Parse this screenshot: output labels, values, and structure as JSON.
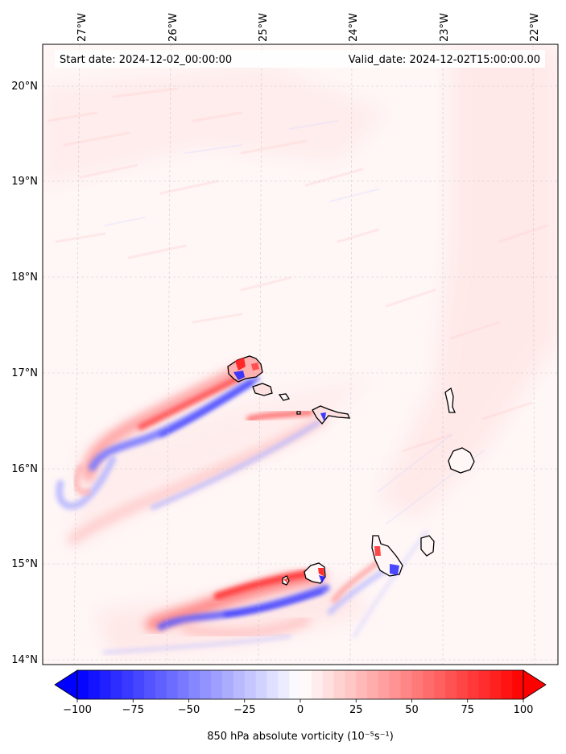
{
  "header": {
    "start_date": "Start date: 2024-12-02_00:00:00",
    "valid_date": "Valid_date: 2024-12-02T15:00:00.00"
  },
  "axes": {
    "lon_labels": [
      "27°W",
      "26°W",
      "25°W",
      "24°W",
      "23°W",
      "22°W"
    ],
    "lat_labels": [
      "20°N",
      "19°N",
      "18°N",
      "17°N",
      "16°N",
      "15°N",
      "14°N"
    ]
  },
  "colorbar": {
    "ticks": [
      "−100",
      "−75",
      "−50",
      "−25",
      "0",
      "25",
      "50",
      "75",
      "100"
    ],
    "label": "850 hPa absolute vorticity (10⁻⁵s⁻¹)",
    "min": -100,
    "max": 100,
    "colors": {
      "low": "#0000ff",
      "mid": "#ffffff",
      "high": "#ff0000"
    }
  },
  "map": {
    "background": "#fff6f6",
    "coastline_color": "#000000",
    "island_fill": "#fde0e0"
  }
}
